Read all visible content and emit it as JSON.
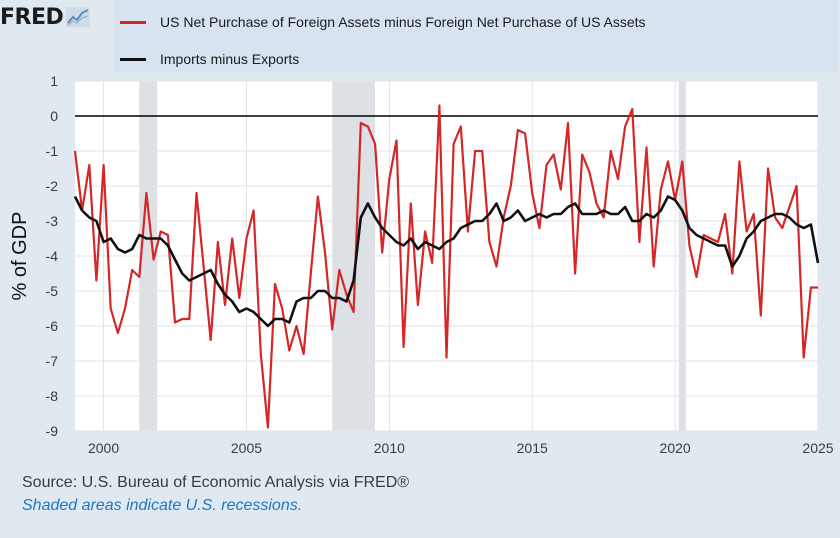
{
  "brand": {
    "name": "FRED"
  },
  "chart_data": {
    "type": "line",
    "title": "",
    "ylabel": "% of GDP",
    "xlabel": "",
    "xlim": [
      1999.0,
      2025.0
    ],
    "ylim": [
      -9,
      1
    ],
    "x_ticks": [
      2000,
      2005,
      2010,
      2015,
      2020,
      2025
    ],
    "y_ticks": [
      1,
      0,
      -1,
      -2,
      -3,
      -4,
      -5,
      -6,
      -7,
      -8,
      -9
    ],
    "grid": true,
    "legend_position": "top",
    "reference_line": 0,
    "recessions": [
      [
        2001.25,
        2001.875
      ],
      [
        2008.0,
        2009.5
      ],
      [
        2020.125,
        2020.375
      ]
    ],
    "x": [
      1999.0,
      1999.25,
      1999.5,
      1999.75,
      2000.0,
      2000.25,
      2000.5,
      2000.75,
      2001.0,
      2001.25,
      2001.5,
      2001.75,
      2002.0,
      2002.25,
      2002.5,
      2002.75,
      2003.0,
      2003.25,
      2003.5,
      2003.75,
      2004.0,
      2004.25,
      2004.5,
      2004.75,
      2005.0,
      2005.25,
      2005.5,
      2005.75,
      2006.0,
      2006.25,
      2006.5,
      2006.75,
      2007.0,
      2007.25,
      2007.5,
      2007.75,
      2008.0,
      2008.25,
      2008.5,
      2008.75,
      2009.0,
      2009.25,
      2009.5,
      2009.75,
      2010.0,
      2010.25,
      2010.5,
      2010.75,
      2011.0,
      2011.25,
      2011.5,
      2011.75,
      2012.0,
      2012.25,
      2012.5,
      2012.75,
      2013.0,
      2013.25,
      2013.5,
      2013.75,
      2014.0,
      2014.25,
      2014.5,
      2014.75,
      2015.0,
      2015.25,
      2015.5,
      2015.75,
      2016.0,
      2016.25,
      2016.5,
      2016.75,
      2017.0,
      2017.25,
      2017.5,
      2017.75,
      2018.0,
      2018.25,
      2018.5,
      2018.75,
      2019.0,
      2019.25,
      2019.5,
      2019.75,
      2020.0,
      2020.25,
      2020.5,
      2020.75,
      2021.0,
      2021.25,
      2021.5,
      2021.75,
      2022.0,
      2022.25,
      2022.5,
      2022.75,
      2023.0,
      2023.25,
      2023.5,
      2023.75,
      2024.0,
      2024.25,
      2024.5,
      2024.75,
      2025.0
    ],
    "series": [
      {
        "name": "US Net Purchase of Foreign Assets minus Foreign Net Purchase of US Assets",
        "color": "#d62728",
        "values": [
          -1.0,
          -2.7,
          -1.4,
          -4.7,
          -1.4,
          -5.5,
          -6.2,
          -5.5,
          -4.4,
          -4.6,
          -2.2,
          -4.1,
          -3.3,
          -3.4,
          -5.9,
          -5.8,
          -5.8,
          -2.2,
          -4.3,
          -6.4,
          -3.6,
          -5.4,
          -3.5,
          -5.2,
          -3.5,
          -2.7,
          -6.8,
          -8.9,
          -4.8,
          -5.5,
          -6.7,
          -6.0,
          -6.8,
          -4.5,
          -2.3,
          -3.9,
          -6.1,
          -4.4,
          -5.1,
          -5.6,
          -0.2,
          -0.3,
          -0.8,
          -3.9,
          -1.8,
          -0.7,
          -6.6,
          -2.5,
          -5.4,
          -3.3,
          -4.2,
          0.3,
          -6.9,
          -0.8,
          -0.3,
          -3.3,
          -1.0,
          -1.0,
          -3.6,
          -4.3,
          -2.9,
          -2.0,
          -0.4,
          -0.5,
          -2.2,
          -3.2,
          -1.4,
          -1.1,
          -2.1,
          -0.2,
          -4.5,
          -1.1,
          -1.6,
          -2.5,
          -2.9,
          -1.0,
          -1.8,
          -0.3,
          0.2,
          -3.6,
          -0.9,
          -4.3,
          -2.1,
          -1.3,
          -2.4,
          -1.3,
          -3.7,
          -4.6,
          -3.4,
          -3.5,
          -3.6,
          -2.8,
          -4.5,
          -1.3,
          -3.3,
          -2.8,
          -5.7,
          -1.5,
          -2.9,
          -3.2,
          -2.6,
          -2.0,
          -6.9,
          -4.9,
          -4.9
        ]
      },
      {
        "name": "Imports minus Exports",
        "color": "#111111",
        "values": [
          -2.3,
          -2.7,
          -2.9,
          -3.0,
          -3.6,
          -3.5,
          -3.8,
          -3.9,
          -3.8,
          -3.4,
          -3.5,
          -3.5,
          -3.5,
          -3.7,
          -4.1,
          -4.5,
          -4.7,
          -4.6,
          -4.5,
          -4.4,
          -4.8,
          -5.1,
          -5.3,
          -5.6,
          -5.5,
          -5.6,
          -5.8,
          -6.0,
          -5.8,
          -5.8,
          -5.9,
          -5.3,
          -5.2,
          -5.2,
          -5.0,
          -5.0,
          -5.2,
          -5.2,
          -5.3,
          -4.7,
          -2.9,
          -2.5,
          -2.9,
          -3.2,
          -3.4,
          -3.6,
          -3.7,
          -3.5,
          -3.8,
          -3.6,
          -3.7,
          -3.8,
          -3.6,
          -3.5,
          -3.2,
          -3.1,
          -3.0,
          -3.0,
          -2.8,
          -2.5,
          -3.0,
          -2.9,
          -2.7,
          -3.0,
          -2.9,
          -2.8,
          -2.9,
          -2.8,
          -2.8,
          -2.6,
          -2.5,
          -2.8,
          -2.8,
          -2.8,
          -2.7,
          -2.8,
          -2.8,
          -2.6,
          -3.0,
          -3.0,
          -2.8,
          -2.9,
          -2.7,
          -2.3,
          -2.4,
          -2.7,
          -3.2,
          -3.4,
          -3.5,
          -3.6,
          -3.7,
          -3.7,
          -4.3,
          -4.0,
          -3.5,
          -3.3,
          -3.0,
          -2.9,
          -2.8,
          -2.8,
          -2.9,
          -3.1,
          -3.2,
          -3.1,
          -4.2
        ]
      }
    ]
  },
  "footer": {
    "source": "Source: U.S. Bureau of Economic Analysis via FRED®",
    "note": "Shaded areas indicate U.S. recessions."
  }
}
